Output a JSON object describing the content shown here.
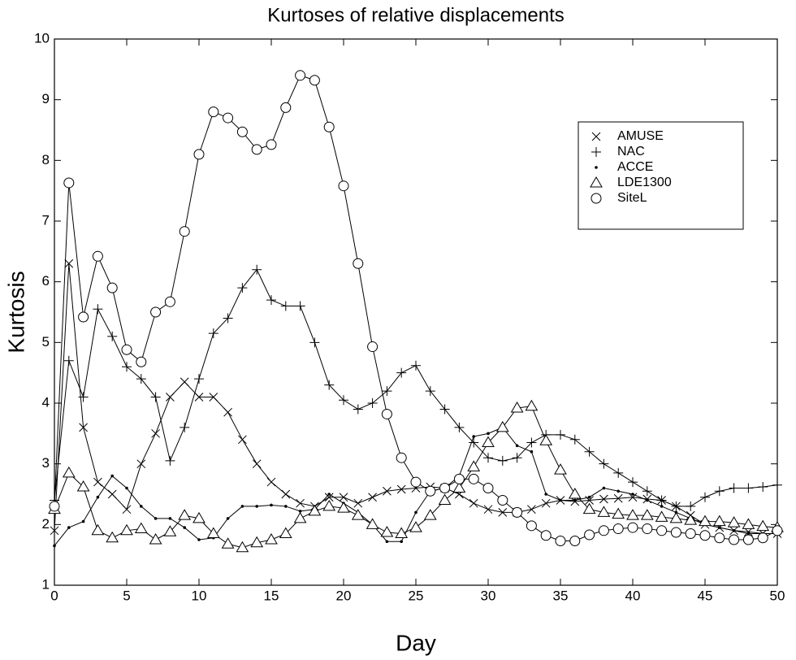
{
  "chart_data": {
    "type": "line",
    "title": "Kurtoses of relative displacements",
    "xlabel": "Day",
    "ylabel": "Kurtosis",
    "x": [
      0,
      1,
      2,
      3,
      4,
      5,
      6,
      7,
      8,
      9,
      10,
      11,
      12,
      13,
      14,
      15,
      16,
      17,
      18,
      19,
      20,
      21,
      22,
      23,
      24,
      25,
      26,
      27,
      28,
      29,
      30,
      31,
      32,
      33,
      34,
      35,
      36,
      37,
      38,
      39,
      40,
      41,
      42,
      43,
      44,
      45,
      46,
      47,
      48,
      49,
      50
    ],
    "xlim": [
      0,
      50
    ],
    "ylim": [
      1,
      10
    ],
    "xticks": [
      0,
      5,
      10,
      15,
      20,
      25,
      30,
      35,
      40,
      45,
      50
    ],
    "yticks": [
      1,
      2,
      3,
      4,
      5,
      6,
      7,
      8,
      9,
      10
    ],
    "legend": "upper right",
    "series": [
      {
        "name": "AMUSE",
        "color": "#000000",
        "marker": "x",
        "values": [
          1.9,
          6.3,
          3.6,
          2.7,
          2.5,
          2.25,
          3.0,
          3.5,
          4.1,
          4.35,
          4.1,
          4.1,
          3.85,
          3.4,
          3.0,
          2.7,
          2.5,
          2.35,
          2.3,
          2.45,
          2.45,
          2.35,
          2.45,
          2.55,
          2.58,
          2.6,
          2.62,
          2.6,
          2.5,
          2.35,
          2.25,
          2.2,
          2.2,
          2.25,
          2.35,
          2.4,
          2.38,
          2.4,
          2.42,
          2.43,
          2.45,
          2.42,
          2.4,
          2.3,
          2.15,
          2.0,
          1.95,
          1.9,
          1.88,
          1.85,
          1.85
        ]
      },
      {
        "name": "NAC",
        "color": "#000000",
        "marker": "+",
        "values": [
          2.4,
          4.7,
          4.1,
          5.55,
          5.1,
          4.6,
          4.4,
          4.1,
          3.05,
          3.6,
          4.4,
          5.15,
          5.4,
          5.9,
          6.2,
          5.7,
          5.6,
          5.6,
          5.0,
          4.3,
          4.05,
          3.9,
          4.0,
          4.2,
          4.5,
          4.62,
          4.2,
          3.9,
          3.6,
          3.35,
          3.1,
          3.05,
          3.1,
          3.35,
          3.48,
          3.48,
          3.4,
          3.2,
          3.0,
          2.85,
          2.7,
          2.55,
          2.4,
          2.3,
          2.3,
          2.45,
          2.55,
          2.6,
          2.6,
          2.62,
          2.65
        ]
      },
      {
        "name": "ACCE",
        "color": "#000000",
        "marker": ".",
        "values": [
          1.65,
          1.95,
          2.05,
          2.45,
          2.8,
          2.6,
          2.3,
          2.1,
          2.1,
          1.95,
          1.75,
          1.78,
          2.1,
          2.3,
          2.3,
          2.32,
          2.3,
          2.22,
          2.25,
          2.5,
          2.35,
          2.2,
          2.0,
          1.72,
          1.72,
          2.2,
          2.55,
          2.6,
          2.8,
          3.45,
          3.5,
          3.6,
          3.3,
          3.2,
          2.5,
          2.4,
          2.4,
          2.45,
          2.6,
          2.55,
          2.5,
          2.4,
          2.3,
          2.2,
          2.1,
          2.0,
          1.95,
          1.9,
          1.85,
          1.85,
          1.85
        ]
      },
      {
        "name": "LDE1300",
        "color": "#000000",
        "marker": "triangle",
        "values": [
          2.25,
          2.85,
          2.62,
          1.9,
          1.78,
          1.9,
          1.93,
          1.75,
          1.88,
          2.15,
          2.1,
          1.85,
          1.68,
          1.62,
          1.7,
          1.75,
          1.85,
          2.1,
          2.22,
          2.3,
          2.27,
          2.15,
          2.0,
          1.87,
          1.85,
          1.95,
          2.15,
          2.4,
          2.6,
          2.95,
          3.35,
          3.6,
          3.92,
          3.95,
          3.38,
          2.9,
          2.5,
          2.25,
          2.2,
          2.17,
          2.15,
          2.15,
          2.12,
          2.1,
          2.07,
          2.05,
          2.05,
          2.03,
          2.0,
          1.97,
          1.95
        ]
      },
      {
        "name": "SiteL",
        "color": "#000000",
        "marker": "circle",
        "values": [
          2.3,
          7.63,
          5.42,
          6.42,
          5.9,
          4.88,
          4.68,
          5.5,
          5.67,
          6.83,
          8.1,
          8.8,
          8.7,
          8.47,
          8.18,
          8.26,
          8.87,
          9.4,
          9.32,
          8.55,
          7.58,
          6.3,
          4.93,
          3.82,
          3.1,
          2.7,
          2.55,
          2.6,
          2.75,
          2.75,
          2.6,
          2.4,
          2.2,
          1.98,
          1.82,
          1.73,
          1.73,
          1.83,
          1.9,
          1.93,
          1.95,
          1.93,
          1.9,
          1.87,
          1.85,
          1.82,
          1.78,
          1.75,
          1.75,
          1.78,
          1.9
        ]
      }
    ]
  }
}
